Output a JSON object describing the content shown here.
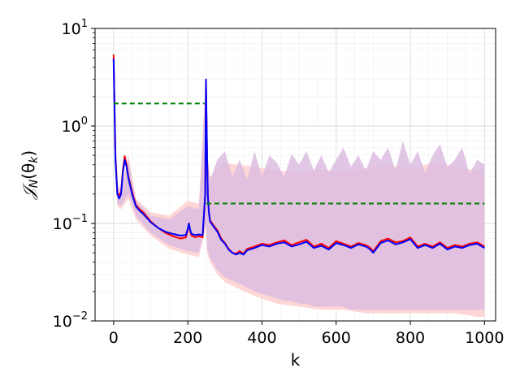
{
  "chart_data": {
    "type": "line",
    "title": "",
    "xlabel": "k",
    "ylabel": "𝒥_N(θ_k)",
    "ylabel_parts": {
      "main": "𝒥",
      "sub1": "N",
      "open": "(θ",
      "sub2": "k",
      "close": ")"
    },
    "xlim": [
      -50,
      1030
    ],
    "ylim": [
      0.01,
      10
    ],
    "yscale": "log",
    "grid": true,
    "legend": "none",
    "x_ticks": [
      0,
      200,
      400,
      600,
      800,
      1000
    ],
    "x_tick_labels": [
      "0",
      "200",
      "400",
      "600",
      "800",
      "1000"
    ],
    "y_ticks": [
      0.01,
      0.1,
      1,
      10
    ],
    "y_tick_labels": [
      {
        "base": "10",
        "exp": "−2"
      },
      {
        "base": "10",
        "exp": "−1"
      },
      {
        "base": "10",
        "exp": "0"
      },
      {
        "base": "10",
        "exp": "1"
      }
    ],
    "colors": {
      "red": "#ff0000",
      "blue": "#0000ff",
      "green": "#008000",
      "red_band": "#ffd6d6",
      "purple_band": "#dcbde0"
    },
    "series": [
      {
        "x": [
          0,
          5,
          10,
          15,
          20,
          25,
          30,
          35,
          40,
          50,
          60,
          70,
          80,
          100,
          120,
          140,
          160,
          180,
          195,
          200,
          203,
          206,
          210,
          220,
          230,
          240,
          247,
          249,
          252,
          254,
          257,
          260,
          270,
          280,
          290,
          300,
          310,
          320,
          330,
          340,
          350,
          360,
          380,
          400,
          420,
          440,
          460,
          480,
          500,
          520,
          540,
          560,
          580,
          600,
          620,
          640,
          660,
          680,
          690,
          700,
          710,
          720,
          740,
          760,
          780,
          800,
          820,
          840,
          860,
          880,
          900,
          920,
          940,
          960,
          980,
          1000
        ],
        "values": [
          5.4,
          0.5,
          0.21,
          0.19,
          0.21,
          0.35,
          0.49,
          0.4,
          0.3,
          0.21,
          0.155,
          0.14,
          0.13,
          0.105,
          0.09,
          0.08,
          0.074,
          0.07,
          0.072,
          0.085,
          0.1,
          0.085,
          0.075,
          0.072,
          0.074,
          0.072,
          0.2,
          2.9,
          0.5,
          0.2,
          0.13,
          0.108,
          0.095,
          0.085,
          0.07,
          0.063,
          0.055,
          0.05,
          0.049,
          0.052,
          0.049,
          0.055,
          0.058,
          0.062,
          0.06,
          0.064,
          0.067,
          0.06,
          0.064,
          0.068,
          0.058,
          0.062,
          0.056,
          0.066,
          0.062,
          0.058,
          0.063,
          0.06,
          0.057,
          0.052,
          0.058,
          0.066,
          0.07,
          0.064,
          0.066,
          0.072,
          0.058,
          0.062,
          0.058,
          0.064,
          0.056,
          0.06,
          0.058,
          0.062,
          0.064,
          0.058
        ]
      },
      {
        "x": [
          0,
          5,
          10,
          15,
          20,
          25,
          30,
          35,
          40,
          50,
          60,
          70,
          80,
          100,
          120,
          140,
          160,
          180,
          195,
          200,
          203,
          206,
          210,
          220,
          230,
          240,
          247,
          249,
          252,
          254,
          257,
          260,
          270,
          280,
          290,
          300,
          310,
          320,
          330,
          340,
          350,
          360,
          380,
          400,
          420,
          440,
          460,
          480,
          500,
          520,
          540,
          560,
          580,
          600,
          620,
          640,
          660,
          680,
          690,
          700,
          710,
          720,
          740,
          760,
          780,
          800,
          820,
          840,
          860,
          880,
          900,
          920,
          940,
          960,
          980,
          1000
        ],
        "values": [
          4.9,
          0.45,
          0.2,
          0.18,
          0.2,
          0.33,
          0.45,
          0.38,
          0.29,
          0.2,
          0.15,
          0.135,
          0.125,
          0.103,
          0.09,
          0.082,
          0.078,
          0.075,
          0.076,
          0.088,
          0.1,
          0.087,
          0.078,
          0.076,
          0.077,
          0.076,
          0.2,
          3.0,
          0.48,
          0.19,
          0.13,
          0.105,
          0.092,
          0.082,
          0.068,
          0.062,
          0.054,
          0.05,
          0.048,
          0.05,
          0.048,
          0.053,
          0.056,
          0.06,
          0.058,
          0.062,
          0.064,
          0.058,
          0.061,
          0.065,
          0.056,
          0.059,
          0.054,
          0.063,
          0.06,
          0.056,
          0.061,
          0.058,
          0.055,
          0.05,
          0.056,
          0.063,
          0.067,
          0.061,
          0.064,
          0.069,
          0.056,
          0.06,
          0.056,
          0.062,
          0.054,
          0.058,
          0.056,
          0.06,
          0.062,
          0.056
        ]
      }
    ],
    "bands": [
      {
        "x": [
          0,
          5,
          10,
          20,
          40,
          60,
          100,
          150,
          200,
          230,
          249,
          252,
          260,
          280,
          300,
          330,
          380,
          440,
          500,
          560,
          620,
          680,
          740,
          800,
          860,
          920,
          980,
          1000
        ],
        "lower": [
          4.4,
          0.35,
          0.15,
          0.14,
          0.18,
          0.11,
          0.075,
          0.055,
          0.048,
          0.045,
          0.09,
          0.05,
          0.04,
          0.03,
          0.025,
          0.022,
          0.018,
          0.015,
          0.014,
          0.013,
          0.013,
          0.012,
          0.012,
          0.012,
          0.012,
          0.012,
          0.011,
          0.011
        ],
        "upper": [
          5.6,
          0.58,
          0.25,
          0.23,
          0.5,
          0.18,
          0.13,
          0.12,
          0.17,
          0.16,
          3.1,
          0.55,
          0.3,
          0.35,
          0.42,
          0.4,
          0.38,
          0.35,
          0.33,
          0.36,
          0.34,
          0.37,
          0.4,
          0.36,
          0.42,
          0.38,
          0.35,
          0.35
        ]
      },
      {
        "x": [
          0,
          5,
          10,
          20,
          40,
          60,
          100,
          150,
          200,
          230,
          249,
          252,
          260,
          280,
          300,
          320,
          340,
          360,
          380,
          400,
          420,
          440,
          460,
          480,
          500,
          520,
          540,
          560,
          580,
          600,
          620,
          640,
          660,
          680,
          700,
          720,
          740,
          760,
          780,
          800,
          820,
          840,
          860,
          880,
          900,
          920,
          940,
          960,
          980,
          1000
        ],
        "lower": [
          4.6,
          0.38,
          0.16,
          0.15,
          0.2,
          0.12,
          0.08,
          0.06,
          0.052,
          0.05,
          0.1,
          0.055,
          0.045,
          0.033,
          0.028,
          0.026,
          0.024,
          0.022,
          0.02,
          0.019,
          0.018,
          0.017,
          0.016,
          0.016,
          0.015,
          0.015,
          0.014,
          0.014,
          0.014,
          0.014,
          0.014,
          0.013,
          0.013,
          0.013,
          0.013,
          0.013,
          0.013,
          0.013,
          0.013,
          0.013,
          0.013,
          0.013,
          0.013,
          0.013,
          0.013,
          0.013,
          0.013,
          0.013,
          0.013,
          0.013
        ],
        "upper": [
          5.3,
          0.52,
          0.23,
          0.21,
          0.45,
          0.17,
          0.12,
          0.11,
          0.15,
          0.14,
          3.0,
          0.5,
          0.28,
          0.45,
          0.55,
          0.3,
          0.45,
          0.28,
          0.55,
          0.3,
          0.5,
          0.42,
          0.3,
          0.52,
          0.4,
          0.55,
          0.35,
          0.5,
          0.33,
          0.45,
          0.6,
          0.38,
          0.5,
          0.35,
          0.55,
          0.45,
          0.6,
          0.35,
          0.7,
          0.4,
          0.55,
          0.33,
          0.5,
          0.65,
          0.38,
          0.45,
          0.6,
          0.32,
          0.45,
          0.4
        ]
      }
    ],
    "reference_lines": [
      {
        "x": [
          0,
          245
        ],
        "y": 1.7
      },
      {
        "x": [
          250,
          1000
        ],
        "y": 0.16
      }
    ]
  }
}
